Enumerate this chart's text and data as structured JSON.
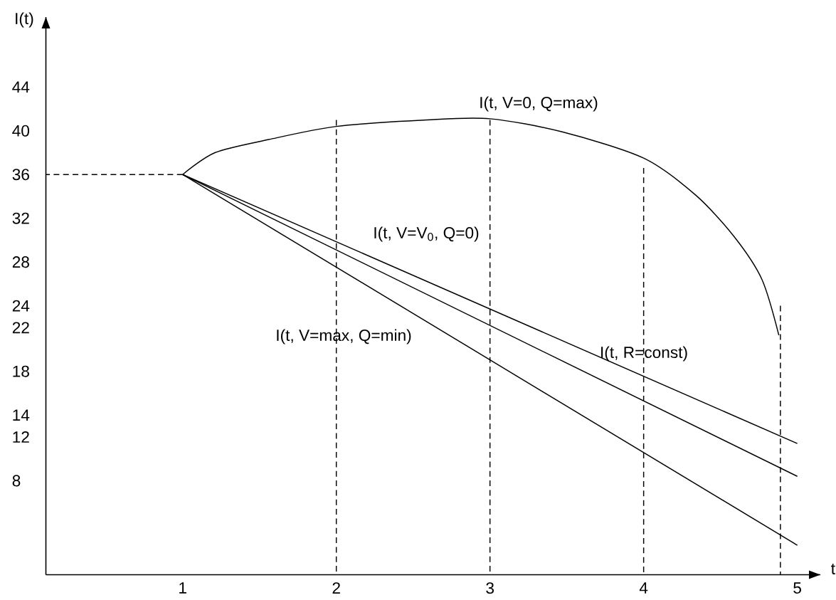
{
  "chart_data": {
    "type": "line",
    "xlabel": "t",
    "ylabel": "I(t)",
    "xlim": [
      0.11,
      5.15
    ],
    "ylim": [
      -0.6,
      50.4
    ],
    "xticks": [
      1,
      2,
      3,
      4,
      5
    ],
    "yticks": [
      8,
      12,
      14,
      18,
      22,
      24,
      28,
      32,
      36,
      40,
      44
    ],
    "grid": false,
    "marker": "none",
    "series": [
      {
        "color": "#000000",
        "line_style": "solid",
        "x": [
          1.0,
          1.21,
          1.56,
          2.0,
          2.59,
          3.0,
          3.47,
          4.0,
          4.34,
          4.59,
          4.77,
          4.88
        ],
        "values": [
          36,
          38.0,
          39.2,
          40.4,
          41.0,
          41.1,
          39.9,
          37.5,
          34.1,
          30.3,
          26.4,
          21.3
        ]
      },
      {
        "color": "#000000",
        "line_style": "solid",
        "x": [
          1.0,
          5.0
        ],
        "values": [
          36,
          11.4
        ]
      },
      {
        "color": "#000000",
        "line_style": "solid",
        "x": [
          1.0,
          5.0
        ],
        "values": [
          36,
          8.4
        ]
      },
      {
        "color": "#000000",
        "line_style": "solid",
        "x": [
          1.0,
          5.0
        ],
        "values": [
          36,
          2.1
        ]
      },
      {
        "color": "#000000",
        "line_style": "dashed",
        "x": [
          1.0,
          0.11
        ],
        "values": [
          36,
          36
        ]
      },
      {
        "color": "#000000",
        "line_style": "dashed",
        "x": [
          2,
          2
        ],
        "values": [
          41.0,
          -0.6
        ]
      },
      {
        "color": "#000000",
        "line_style": "dashed",
        "x": [
          3,
          3
        ],
        "values": [
          41.0,
          -0.6
        ]
      },
      {
        "color": "#000000",
        "line_style": "dashed",
        "x": [
          4,
          4
        ],
        "values": [
          36.6,
          -0.6
        ]
      },
      {
        "color": "#000000",
        "line_style": "dashed",
        "x": [
          4.89,
          4.89
        ],
        "values": [
          24.0,
          -0.6
        ]
      }
    ],
    "annotations": [
      "I(t, V=0, Q=max)",
      "I(t, V=V$_{0}$, Q=0)",
      "I(t, V=max, Q=min)",
      "I(t, R=const)"
    ]
  }
}
